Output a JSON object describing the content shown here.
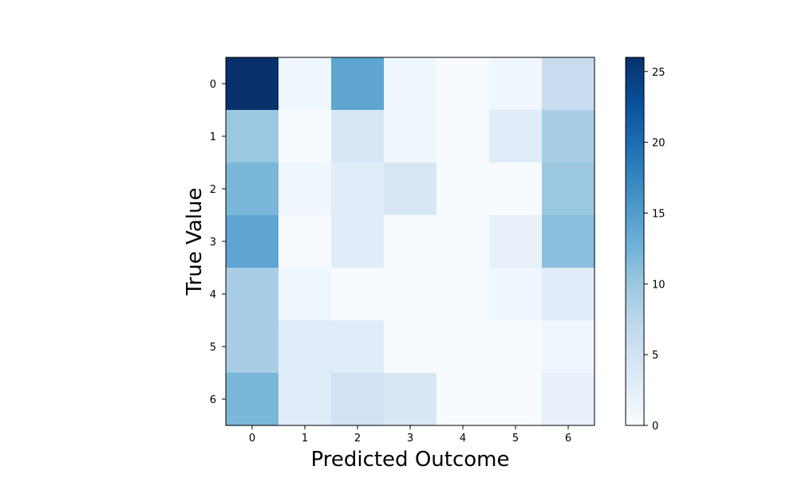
{
  "chart_data": {
    "type": "heatmap",
    "x_categories": [
      "0",
      "1",
      "2",
      "3",
      "4",
      "5",
      "6"
    ],
    "y_categories": [
      "0",
      "1",
      "2",
      "3",
      "4",
      "5",
      "6"
    ],
    "xlabel": "Predicted Outcome",
    "ylabel": "True Value",
    "values": [
      [
        26,
        1,
        14,
        1,
        0,
        1,
        6
      ],
      [
        10,
        0,
        4,
        1,
        0,
        3,
        9
      ],
      [
        12,
        1,
        3,
        4,
        0,
        0,
        10
      ],
      [
        14,
        0,
        3,
        0,
        0,
        2,
        11
      ],
      [
        9,
        1,
        0,
        0,
        0,
        1,
        3
      ],
      [
        9,
        3,
        3,
        0,
        0,
        0,
        1
      ],
      [
        12,
        3,
        5,
        4,
        0,
        0,
        2
      ]
    ],
    "colorbar": {
      "min": 0,
      "max": 26,
      "ticks": [
        0,
        5,
        10,
        15,
        20,
        25
      ],
      "colormap": "Blues"
    }
  }
}
